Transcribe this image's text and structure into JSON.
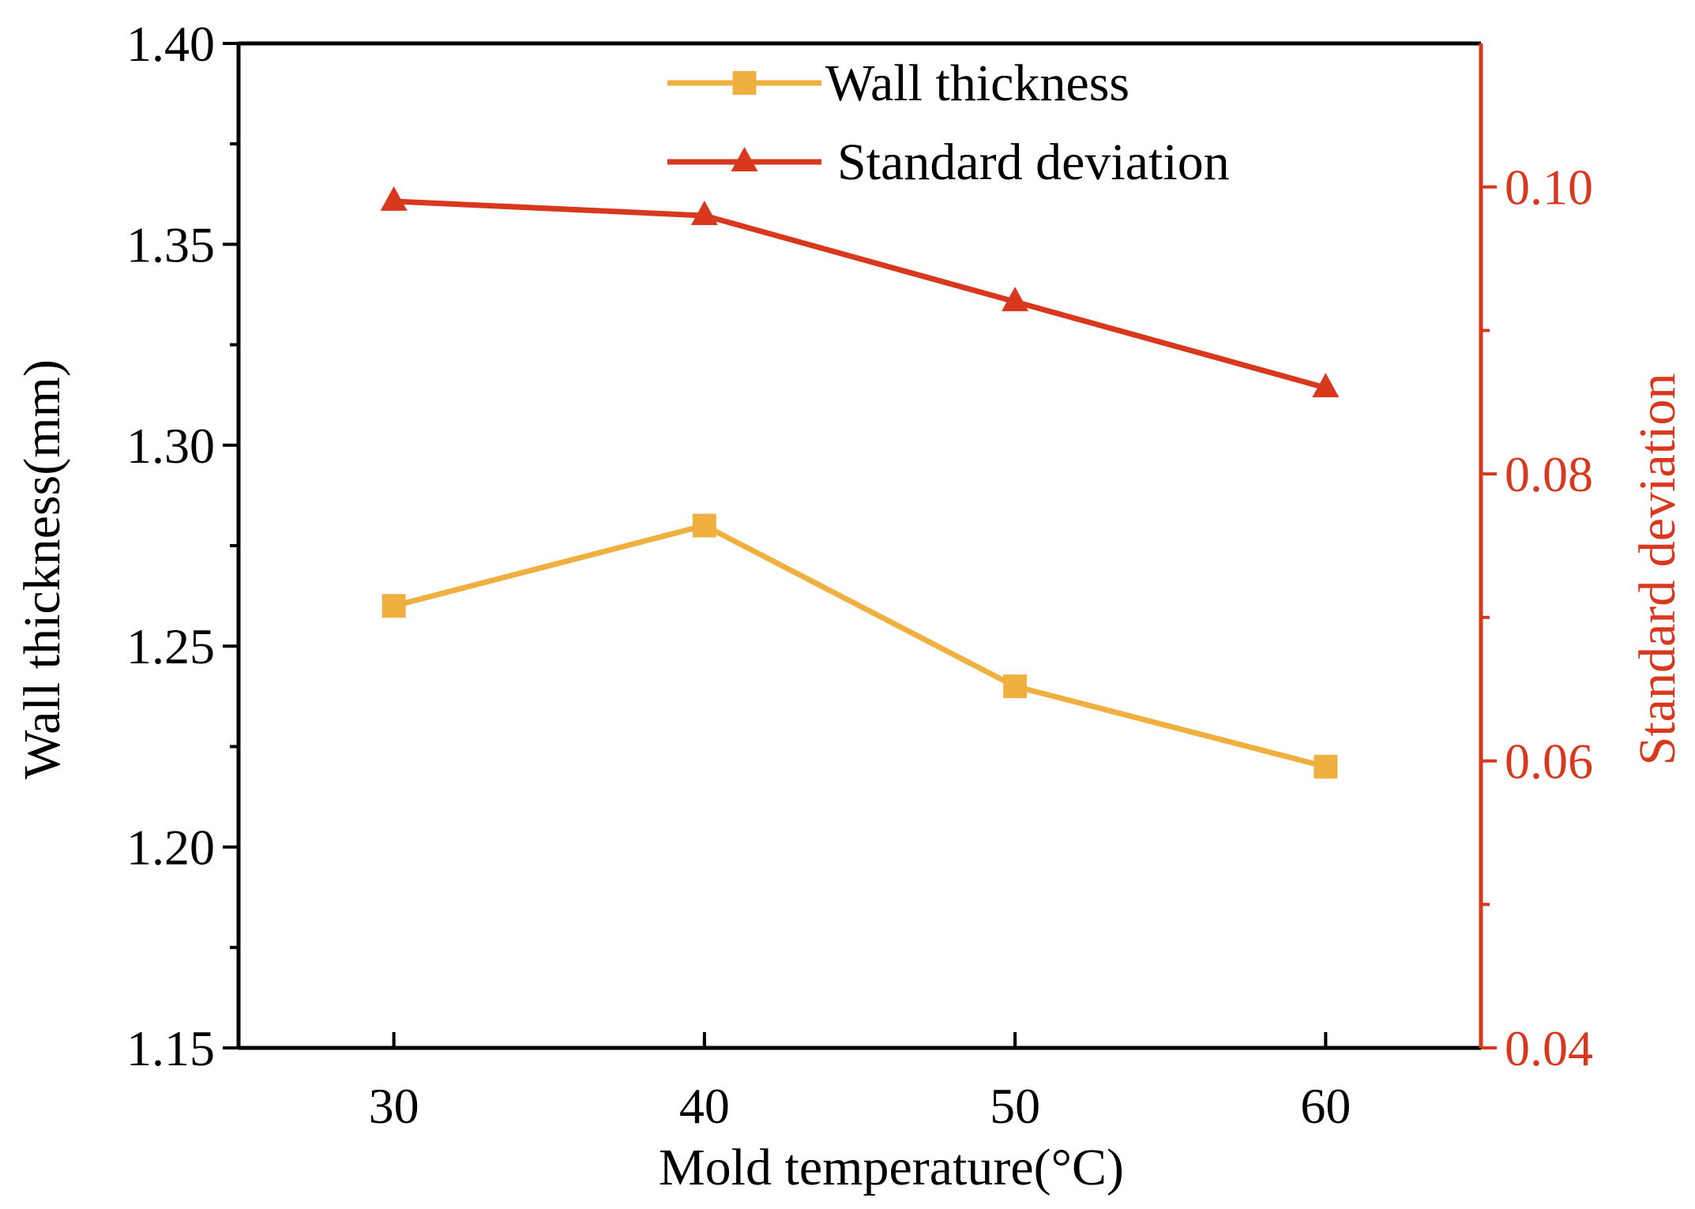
{
  "chart_data": {
    "type": "line",
    "title": "",
    "xlabel": "Mold temperature(°C)",
    "ylabel_left": "Wall thickness(mm)",
    "ylabel_right": "Standard deviation",
    "x": [
      30,
      40,
      50,
      60
    ],
    "xlim": [
      25,
      65
    ],
    "x_ticks": [
      "30",
      "40",
      "50",
      "60"
    ],
    "y_left_lim": [
      1.15,
      1.4
    ],
    "y_left_ticks": [
      "1.15",
      "1.20",
      "1.25",
      "1.30",
      "1.35",
      "1.40"
    ],
    "y_right_lim": [
      0.04,
      0.11
    ],
    "y_right_ticks": [
      "0.04",
      "0.06",
      "0.08",
      "0.10"
    ],
    "legend_position": "top-center",
    "grid": false,
    "series": [
      {
        "name": "Wall thickness",
        "axis": "left",
        "marker": "square",
        "color": "#F0B040",
        "values": [
          1.26,
          1.28,
          1.24,
          1.22
        ]
      },
      {
        "name": "Standard deviation",
        "axis": "right",
        "marker": "triangle",
        "color": "#D8391E",
        "values": [
          0.099,
          0.098,
          0.092,
          0.086
        ]
      }
    ],
    "colors": {
      "axis_left": "#000000",
      "axis_right": "#D8391E"
    }
  }
}
